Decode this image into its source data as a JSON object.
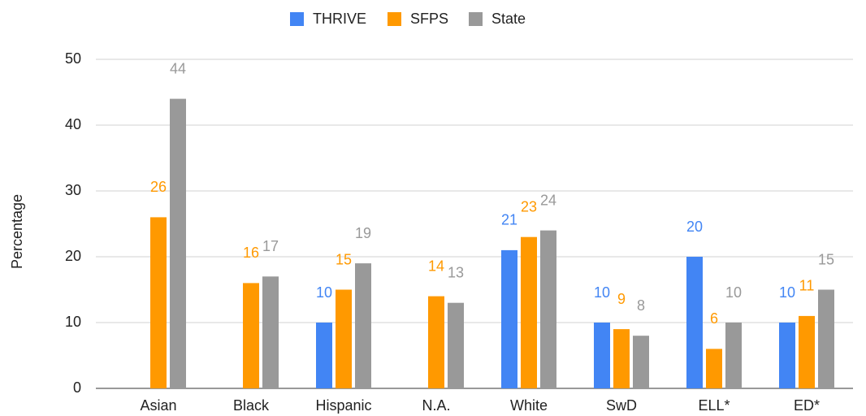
{
  "chart_data": {
    "type": "bar",
    "y_label": "Percentage",
    "categories": [
      "Asian",
      "Black",
      "Hispanic",
      "N.A.",
      "White",
      "SwD",
      "ELL*",
      "ED*"
    ],
    "series": [
      {
        "name": "THRIVE",
        "color": "#4285f4",
        "values": [
          null,
          null,
          10,
          null,
          21,
          10,
          20,
          10
        ]
      },
      {
        "name": "SFPS",
        "color": "#ff9900",
        "values": [
          26,
          16,
          15,
          14,
          23,
          9,
          6,
          11
        ]
      },
      {
        "name": "State",
        "color": "#999999",
        "values": [
          44,
          17,
          19,
          13,
          24,
          8,
          10,
          15
        ]
      }
    ],
    "ylim": [
      0,
      50
    ],
    "yticks": [
      0,
      10,
      20,
      30,
      40,
      50
    ],
    "grid": true,
    "legend": "top"
  }
}
